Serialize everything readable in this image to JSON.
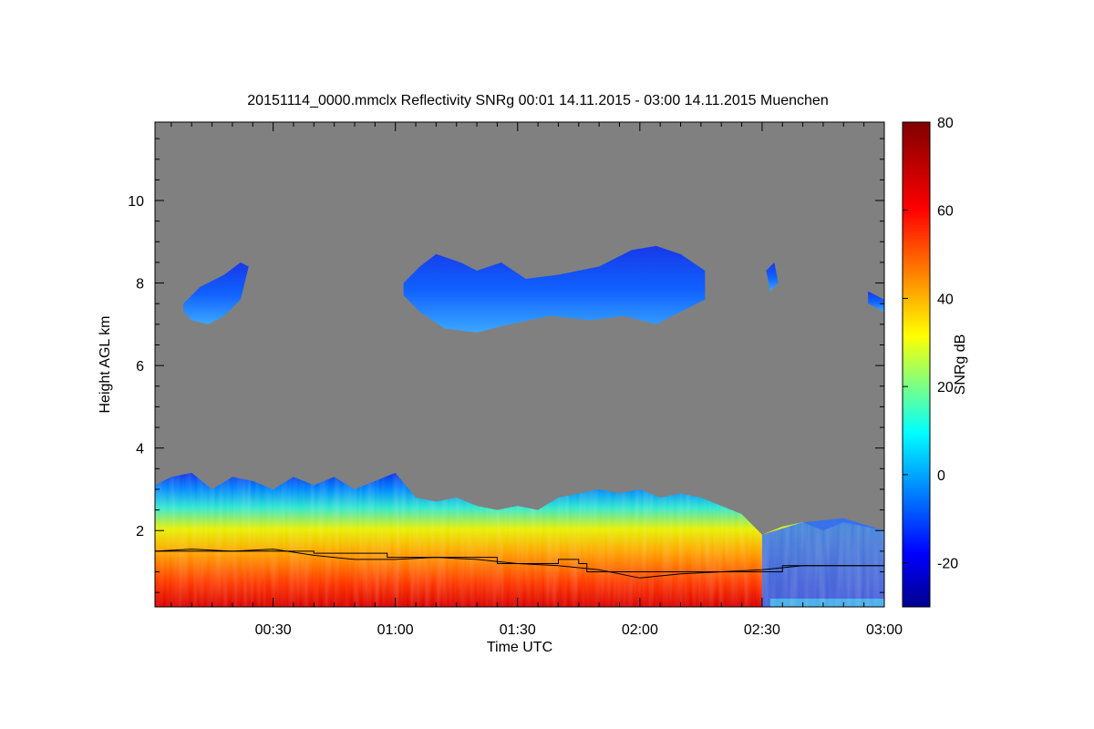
{
  "chart_data": {
    "type": "heatmap",
    "title": "20151114_0000.mmclx Reflectivity SNRg   00:01 14.11.2015 - 03:00 14.11.2015 Muenchen",
    "xlabel": "Time UTC",
    "ylabel": "Height AGL km",
    "x_ticks": [
      "00:30",
      "01:00",
      "01:30",
      "02:00",
      "02:30",
      "03:00"
    ],
    "x_tick_minutes": [
      30,
      60,
      90,
      120,
      150,
      180
    ],
    "xlim_minutes": [
      1,
      180
    ],
    "y_ticks": [
      2,
      4,
      6,
      8,
      10
    ],
    "ylim": [
      0.15,
      11.9
    ],
    "colorbar": {
      "label": "SNRg dB",
      "ticks": [
        -20,
        0,
        20,
        40,
        60,
        80
      ],
      "range": [
        -30,
        80
      ],
      "colormap": "jet"
    },
    "background_color": "#808080",
    "boundary_layer_top_km": [
      [
        1,
        1.5
      ],
      [
        10,
        1.55
      ],
      [
        20,
        1.5
      ],
      [
        30,
        1.55
      ],
      [
        40,
        1.4
      ],
      [
        50,
        1.3
      ],
      [
        60,
        1.3
      ],
      [
        70,
        1.35
      ],
      [
        80,
        1.3
      ],
      [
        90,
        1.2
      ],
      [
        100,
        1.15
      ],
      [
        110,
        1.05
      ],
      [
        120,
        0.85
      ],
      [
        130,
        0.95
      ],
      [
        140,
        1.0
      ],
      [
        150,
        1.05
      ],
      [
        160,
        1.15
      ],
      [
        170,
        1.15
      ],
      [
        180,
        1.15
      ]
    ],
    "mixing_height_steps_km": [
      [
        1,
        1.5
      ],
      [
        20,
        1.5
      ],
      [
        40,
        1.45
      ],
      [
        50,
        1.45
      ],
      [
        58,
        1.35
      ],
      [
        70,
        1.35
      ],
      [
        85,
        1.2
      ],
      [
        95,
        1.2
      ],
      [
        100,
        1.3
      ],
      [
        105,
        1.2
      ],
      [
        107,
        1.0
      ],
      [
        150,
        1.0
      ],
      [
        155,
        1.15
      ],
      [
        180,
        1.15
      ]
    ]
  }
}
